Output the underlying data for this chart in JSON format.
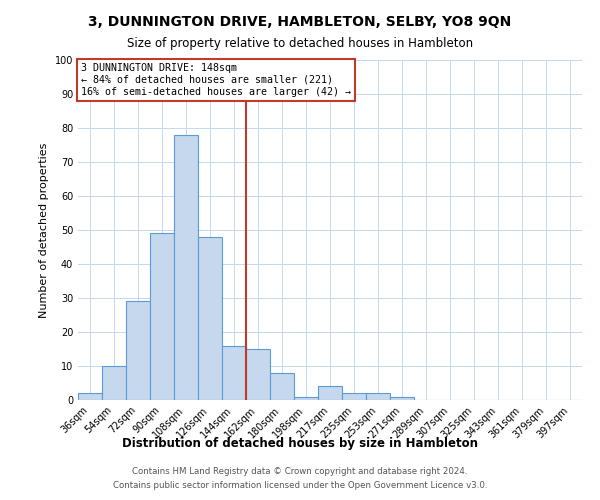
{
  "title": "3, DUNNINGTON DRIVE, HAMBLETON, SELBY, YO8 9QN",
  "subtitle": "Size of property relative to detached houses in Hambleton",
  "xlabel": "Distribution of detached houses by size in Hambleton",
  "ylabel": "Number of detached properties",
  "footer_line1": "Contains HM Land Registry data © Crown copyright and database right 2024.",
  "footer_line2": "Contains public sector information licensed under the Open Government Licence v3.0.",
  "bar_labels": [
    "36sqm",
    "54sqm",
    "72sqm",
    "90sqm",
    "108sqm",
    "126sqm",
    "144sqm",
    "162sqm",
    "180sqm",
    "198sqm",
    "217sqm",
    "235sqm",
    "253sqm",
    "271sqm",
    "289sqm",
    "307sqm",
    "325sqm",
    "343sqm",
    "361sqm",
    "379sqm",
    "397sqm"
  ],
  "bar_heights": [
    2,
    10,
    29,
    49,
    78,
    48,
    16,
    15,
    8,
    1,
    4,
    2,
    2,
    1,
    0,
    0,
    0,
    0,
    0,
    0,
    0
  ],
  "bar_color": "#c5d8ed",
  "bar_edge_color": "#5b9bd5",
  "vline_color": "#c0392b",
  "vline_bin_index": 6,
  "annotation_text": "3 DUNNINGTON DRIVE: 148sqm\n← 84% of detached houses are smaller (221)\n16% of semi-detached houses are larger (42) →",
  "annotation_box_color": "#ffffff",
  "annotation_box_edge_color": "#c0392b",
  "ylim": [
    0,
    100
  ],
  "background_color": "#ffffff",
  "grid_color": "#c5d8ed"
}
